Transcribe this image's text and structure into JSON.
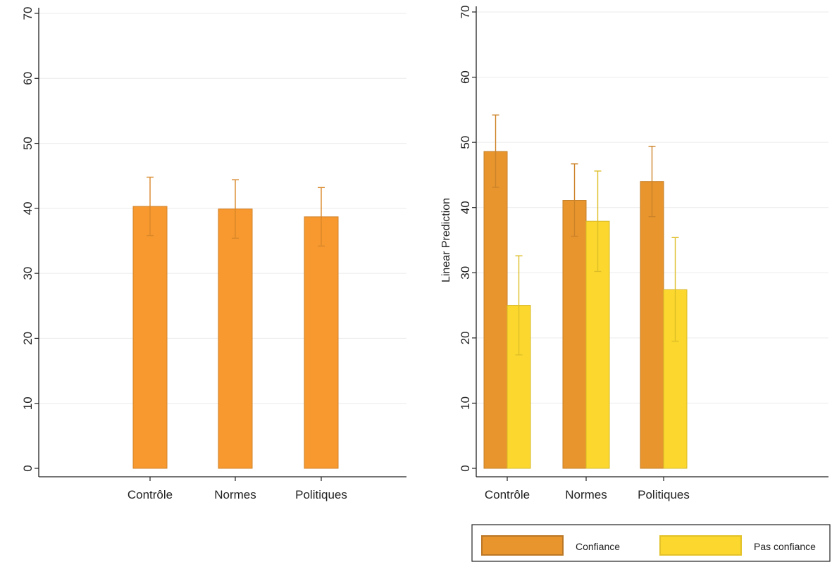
{
  "chart_data": [
    {
      "type": "bar",
      "categories": [
        "Contrôle",
        "Normes",
        "Politiques"
      ],
      "series": [
        {
          "values": [
            40.3,
            39.9,
            38.7
          ],
          "ci_low": [
            35.8,
            35.4,
            34.2
          ],
          "ci_high": [
            44.8,
            44.4,
            43.2
          ],
          "color": "#f7992f"
        }
      ],
      "ylim": [
        0,
        70
      ],
      "yticks": [
        0,
        10,
        20,
        30,
        40,
        50,
        60,
        70
      ],
      "grid": true,
      "title": "",
      "xlabel": "",
      "ylabel": ""
    },
    {
      "type": "bar",
      "categories": [
        "Contrôle",
        "Normes",
        "Politiques"
      ],
      "series": [
        {
          "name": "Confiance",
          "values": [
            48.6,
            41.1,
            44.0
          ],
          "ci_low": [
            43.1,
            35.6,
            38.6
          ],
          "ci_high": [
            54.2,
            46.7,
            49.4
          ],
          "color": "#e8952e"
        },
        {
          "name": "Pas confiance",
          "values": [
            25.0,
            37.9,
            27.4
          ],
          "ci_low": [
            17.4,
            30.2,
            19.5
          ],
          "ci_high": [
            32.6,
            45.6,
            35.4
          ],
          "color": "#fcd82e"
        }
      ],
      "ylim": [
        0,
        70
      ],
      "yticks": [
        0,
        10,
        20,
        30,
        40,
        50,
        60,
        70
      ],
      "grid": true,
      "title": "",
      "xlabel": "",
      "ylabel": "Linear Prediction",
      "legend": "bottom"
    }
  ]
}
